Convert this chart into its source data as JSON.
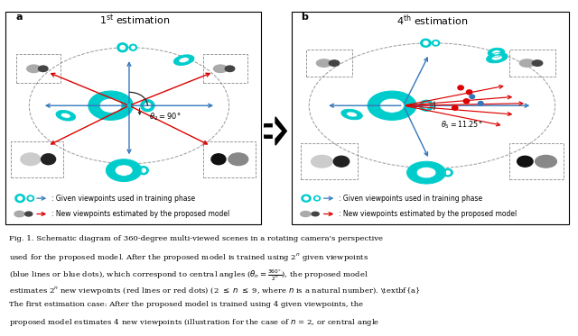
{
  "fig_width": 6.4,
  "fig_height": 3.73,
  "bg_color": "#ffffff",
  "panel_a_title": "1$^{\\mathrm{st}}$ estimation",
  "panel_b_title": "4$^{\\mathrm{th}}$ estimation",
  "cyan_color": "#00cccc",
  "red_color": "#dd0000",
  "blue_color": "#3377bb",
  "theta2_label": "$\\theta_2 = 90°$",
  "theta5_label": "$\\theta_5 = 11.25°$",
  "legend_given": ": Given viewpoints used in training phase",
  "legend_new": ": New viewpoints estimated by the proposed model"
}
